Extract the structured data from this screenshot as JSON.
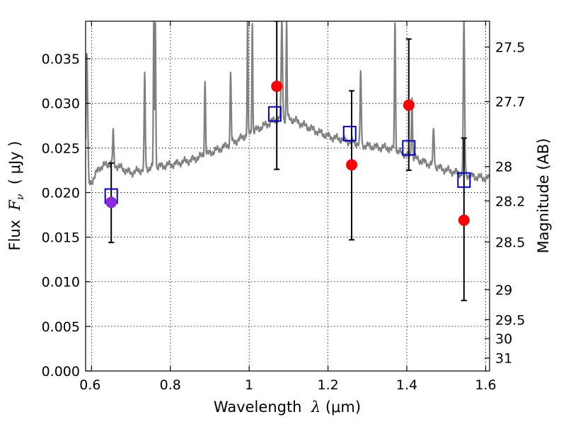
{
  "chart_data": {
    "type": "scatter",
    "title": "",
    "xlabel": {
      "prefix": "Wavelength  ",
      "symbol": "λ",
      "suffix": " (μm)"
    },
    "ylabel": {
      "prefix": "Flux  ",
      "symbol": "F",
      "subscript": "ν",
      "suffix": "  ( μJy )"
    },
    "ylabel_right": "Magnitude (AB)",
    "xlim": [
      0.585,
      1.61
    ],
    "ylim": [
      0.0,
      0.0392
    ],
    "grid": true,
    "grid_style": "dotted",
    "x_ticks": [
      {
        "value": 0.6,
        "label": ""
      },
      {
        "value": 0.8,
        "label": "0.8"
      },
      {
        "value": 1.0,
        "label": "1"
      },
      {
        "value": 1.2,
        "label": "1.2"
      },
      {
        "value": 1.4,
        "label": "1.4"
      },
      {
        "value": 1.6,
        "label": "1.6"
      }
    ],
    "x_first_label": {
      "value": 0.6,
      "label": "0.6"
    },
    "y_ticks": [
      {
        "value": 0.0,
        "label": "0.000"
      },
      {
        "value": 0.005,
        "label": "0.005"
      },
      {
        "value": 0.01,
        "label": "0.010"
      },
      {
        "value": 0.015,
        "label": "0.015"
      },
      {
        "value": 0.02,
        "label": "0.020"
      },
      {
        "value": 0.025,
        "label": "0.025"
      },
      {
        "value": 0.03,
        "label": "0.030"
      },
      {
        "value": 0.035,
        "label": "0.035"
      }
    ],
    "right_axis_ticks": [
      {
        "value": 27.5,
        "label": "27.5"
      },
      {
        "value": 27.7,
        "label": "27.7"
      },
      {
        "value": 28.0,
        "label": "28"
      },
      {
        "value": 28.2,
        "label": "28.2"
      },
      {
        "value": 28.5,
        "label": "28.5"
      },
      {
        "value": 29.0,
        "label": "29"
      },
      {
        "value": 29.5,
        "label": "29.5"
      },
      {
        "value": 30.0,
        "label": "30"
      },
      {
        "value": 31.0,
        "label": "31"
      }
    ],
    "series": [
      {
        "kind": "model_spectrum",
        "color": "#808080",
        "continuum": [
          [
            0.585,
            0.02
          ],
          [
            0.6,
            0.0212
          ],
          [
            0.62,
            0.0228
          ],
          [
            0.65,
            0.0233
          ],
          [
            0.7,
            0.0222
          ],
          [
            0.75,
            0.0228
          ],
          [
            0.8,
            0.0231
          ],
          [
            0.85,
            0.0236
          ],
          [
            0.9,
            0.0244
          ],
          [
            0.95,
            0.0254
          ],
          [
            1.0,
            0.0266
          ],
          [
            1.03,
            0.0273
          ],
          [
            1.06,
            0.028
          ],
          [
            1.08,
            0.0283
          ],
          [
            1.1,
            0.0283
          ],
          [
            1.12,
            0.028
          ],
          [
            1.15,
            0.0273
          ],
          [
            1.2,
            0.0263
          ],
          [
            1.25,
            0.0258
          ],
          [
            1.3,
            0.0252
          ],
          [
            1.35,
            0.025
          ],
          [
            1.4,
            0.0242
          ],
          [
            1.45,
            0.0233
          ],
          [
            1.5,
            0.0225
          ],
          [
            1.55,
            0.022
          ],
          [
            1.58,
            0.0217
          ],
          [
            1.61,
            0.0216
          ]
        ],
        "lines": [
          {
            "x": 0.588,
            "peak": 0.0358,
            "width": 0.004
          },
          {
            "x": 0.655,
            "peak": 0.0268,
            "width": 0.0025
          },
          {
            "x": 0.735,
            "peak": 0.0331,
            "width": 0.0025
          },
          {
            "x": 0.758,
            "peak": 0.0392,
            "width": 0.002
          },
          {
            "x": 0.762,
            "peak": 0.0392,
            "width": 0.002
          },
          {
            "x": 0.888,
            "peak": 0.0326,
            "width": 0.0025
          },
          {
            "x": 0.953,
            "peak": 0.0334,
            "width": 0.0025
          },
          {
            "x": 0.996,
            "peak": 0.0392,
            "width": 0.002
          },
          {
            "x": 1.008,
            "peak": 0.0392,
            "width": 0.002
          },
          {
            "x": 1.083,
            "peak": 0.0392,
            "width": 0.003
          },
          {
            "x": 1.095,
            "peak": 0.0392,
            "width": 0.002
          },
          {
            "x": 1.283,
            "peak": 0.0336,
            "width": 0.0025
          },
          {
            "x": 1.37,
            "peak": 0.0392,
            "width": 0.0025
          },
          {
            "x": 1.413,
            "peak": 0.0308,
            "width": 0.0025
          },
          {
            "x": 1.468,
            "peak": 0.0271,
            "width": 0.003
          },
          {
            "x": 1.545,
            "peak": 0.0392,
            "width": 0.003
          }
        ]
      },
      {
        "kind": "model_photometry",
        "marker": "open-square",
        "color": "#0000cc",
        "points": [
          {
            "x": 0.65,
            "y": 0.0196
          },
          {
            "x": 1.065,
            "y": 0.0288
          },
          {
            "x": 1.255,
            "y": 0.0266
          },
          {
            "x": 1.405,
            "y": 0.025
          },
          {
            "x": 1.545,
            "y": 0.0214
          }
        ]
      },
      {
        "kind": "observed_photometry",
        "marker": "filled-circle",
        "color": "#ff0000",
        "errorbar_color": "#000000",
        "points": [
          {
            "x": 0.65,
            "y": 0.0189,
            "yerr_low": 0.0045,
            "yerr_high": 0.0044,
            "color": "#8a2be2"
          },
          {
            "x": 1.07,
            "y": 0.0319,
            "yerr_low": 0.0093,
            "yerr_high": 0.0073
          },
          {
            "x": 1.26,
            "y": 0.0231,
            "yerr_low": 0.0084,
            "yerr_high": 0.0083
          },
          {
            "x": 1.405,
            "y": 0.0298,
            "yerr_low": 0.0073,
            "yerr_high": 0.0074
          },
          {
            "x": 1.545,
            "y": 0.0169,
            "yerr_low": 0.009,
            "yerr_high": 0.0092
          }
        ]
      }
    ]
  }
}
